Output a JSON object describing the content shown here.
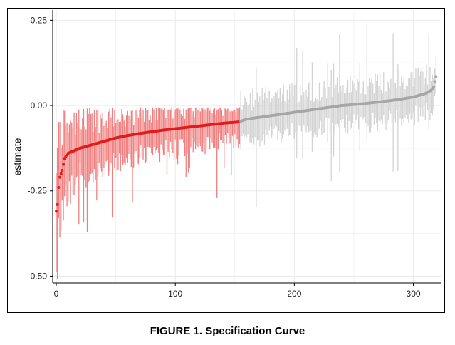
{
  "caption": "FIGURE 1. Specification Curve",
  "colors": {
    "significant_point": "#e31a1c",
    "significant_bar": "#f08080",
    "nonsignificant_point": "#a6a6a6",
    "nonsignificant_bar": "#d3d3d3",
    "grid": "#ebebeb",
    "axis": "#000000"
  },
  "chart_data": {
    "type": "scatter",
    "title": "",
    "xlabel": "",
    "ylabel": "estimate",
    "xlim": [
      -3,
      323
    ],
    "ylim": [
      -0.52,
      0.28
    ],
    "x_ticks": [
      0,
      100,
      200,
      300
    ],
    "x_tick_labels": [
      "0",
      "100",
      "200",
      "300"
    ],
    "y_ticks": [
      0.25,
      0.0,
      -0.25,
      -0.5
    ],
    "y_tick_labels": [
      "0.25",
      "0.00",
      "-0.25",
      "-0.50"
    ],
    "grid": true,
    "legend": "none",
    "n_specifications": 320,
    "n_significant": 155,
    "series": [
      {
        "anchors": [
          [
            0,
            -0.31
          ],
          [
            1,
            -0.29
          ],
          [
            2,
            -0.24
          ],
          [
            3,
            -0.21
          ],
          [
            5,
            -0.19
          ],
          [
            7,
            -0.155
          ],
          [
            10,
            -0.14
          ],
          [
            20,
            -0.125
          ],
          [
            30,
            -0.115
          ],
          [
            40,
            -0.105
          ],
          [
            50,
            -0.095
          ],
          [
            60,
            -0.088
          ],
          [
            70,
            -0.082
          ],
          [
            80,
            -0.077
          ],
          [
            90,
            -0.072
          ],
          [
            100,
            -0.068
          ],
          [
            110,
            -0.064
          ],
          [
            120,
            -0.06
          ],
          [
            130,
            -0.056
          ],
          [
            140,
            -0.052
          ],
          [
            154,
            -0.048
          ]
        ],
        "significant": true
      },
      {
        "anchors": [
          [
            155,
            -0.046
          ],
          [
            160,
            -0.04
          ],
          [
            170,
            -0.035
          ],
          [
            180,
            -0.03
          ],
          [
            190,
            -0.025
          ],
          [
            200,
            -0.02
          ],
          [
            210,
            -0.015
          ],
          [
            220,
            -0.01
          ],
          [
            230,
            -0.005
          ],
          [
            240,
            0.0
          ],
          [
            250,
            0.003
          ],
          [
            260,
            0.006
          ],
          [
            270,
            0.01
          ],
          [
            280,
            0.014
          ],
          [
            290,
            0.019
          ],
          [
            300,
            0.025
          ],
          [
            310,
            0.035
          ],
          [
            315,
            0.045
          ],
          [
            317,
            0.055
          ],
          [
            318,
            0.07
          ],
          [
            319,
            0.085
          ]
        ],
        "significant": false
      }
    ]
  }
}
